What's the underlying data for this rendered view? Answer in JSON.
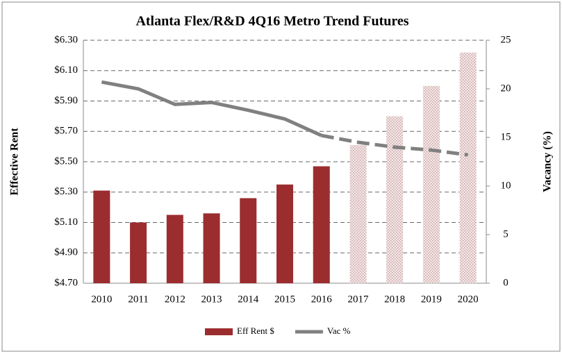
{
  "chart_data": {
    "type": "bar",
    "title": "Atlanta Flex/R&D 4Q16 Metro Trend Futures",
    "y_label": "Effective Rent",
    "y2_label": "Vacancy (%)",
    "categories": [
      "2010",
      "2011",
      "2012",
      "2013",
      "2014",
      "2015",
      "2016",
      "2017",
      "2018",
      "2019",
      "2020"
    ],
    "series": [
      {
        "name": "Eff Rent $",
        "type": "bar",
        "color": "#9b2d2f",
        "fills": [
          "solid",
          "solid",
          "solid",
          "solid",
          "solid",
          "solid",
          "solid",
          "hatched",
          "hatched",
          "hatched",
          "hatched"
        ],
        "values": [
          5.31,
          5.1,
          5.15,
          5.16,
          5.26,
          5.35,
          5.47,
          5.61,
          5.8,
          6.0,
          6.22
        ]
      },
      {
        "name": "Vac %",
        "type": "line",
        "axis": "y2",
        "color": "#808080",
        "line_styles": [
          "solid",
          "solid",
          "solid",
          "solid",
          "solid",
          "solid",
          "solid",
          "dashed",
          "dashed",
          "dashed",
          "dashed"
        ],
        "values": [
          20.7,
          20.0,
          18.4,
          18.6,
          17.8,
          16.9,
          15.2,
          14.5,
          14.0,
          13.7,
          13.2
        ]
      }
    ],
    "ylim": [
      4.7,
      6.3
    ],
    "yticks": [
      {
        "value": 4.7,
        "label": "$4.70"
      },
      {
        "value": 4.9,
        "label": "$4.90"
      },
      {
        "value": 5.1,
        "label": "$5.10"
      },
      {
        "value": 5.3,
        "label": "$5.30"
      },
      {
        "value": 5.5,
        "label": "$5.50"
      },
      {
        "value": 5.7,
        "label": "$5.70"
      },
      {
        "value": 5.9,
        "label": "$5.90"
      },
      {
        "value": 6.1,
        "label": "$6.10"
      },
      {
        "value": 6.3,
        "label": "$6.30"
      }
    ],
    "y2lim": [
      0,
      25
    ],
    "y2ticks": [
      0,
      5,
      10,
      15,
      20,
      25
    ],
    "grid": true,
    "legend": "bottom"
  }
}
